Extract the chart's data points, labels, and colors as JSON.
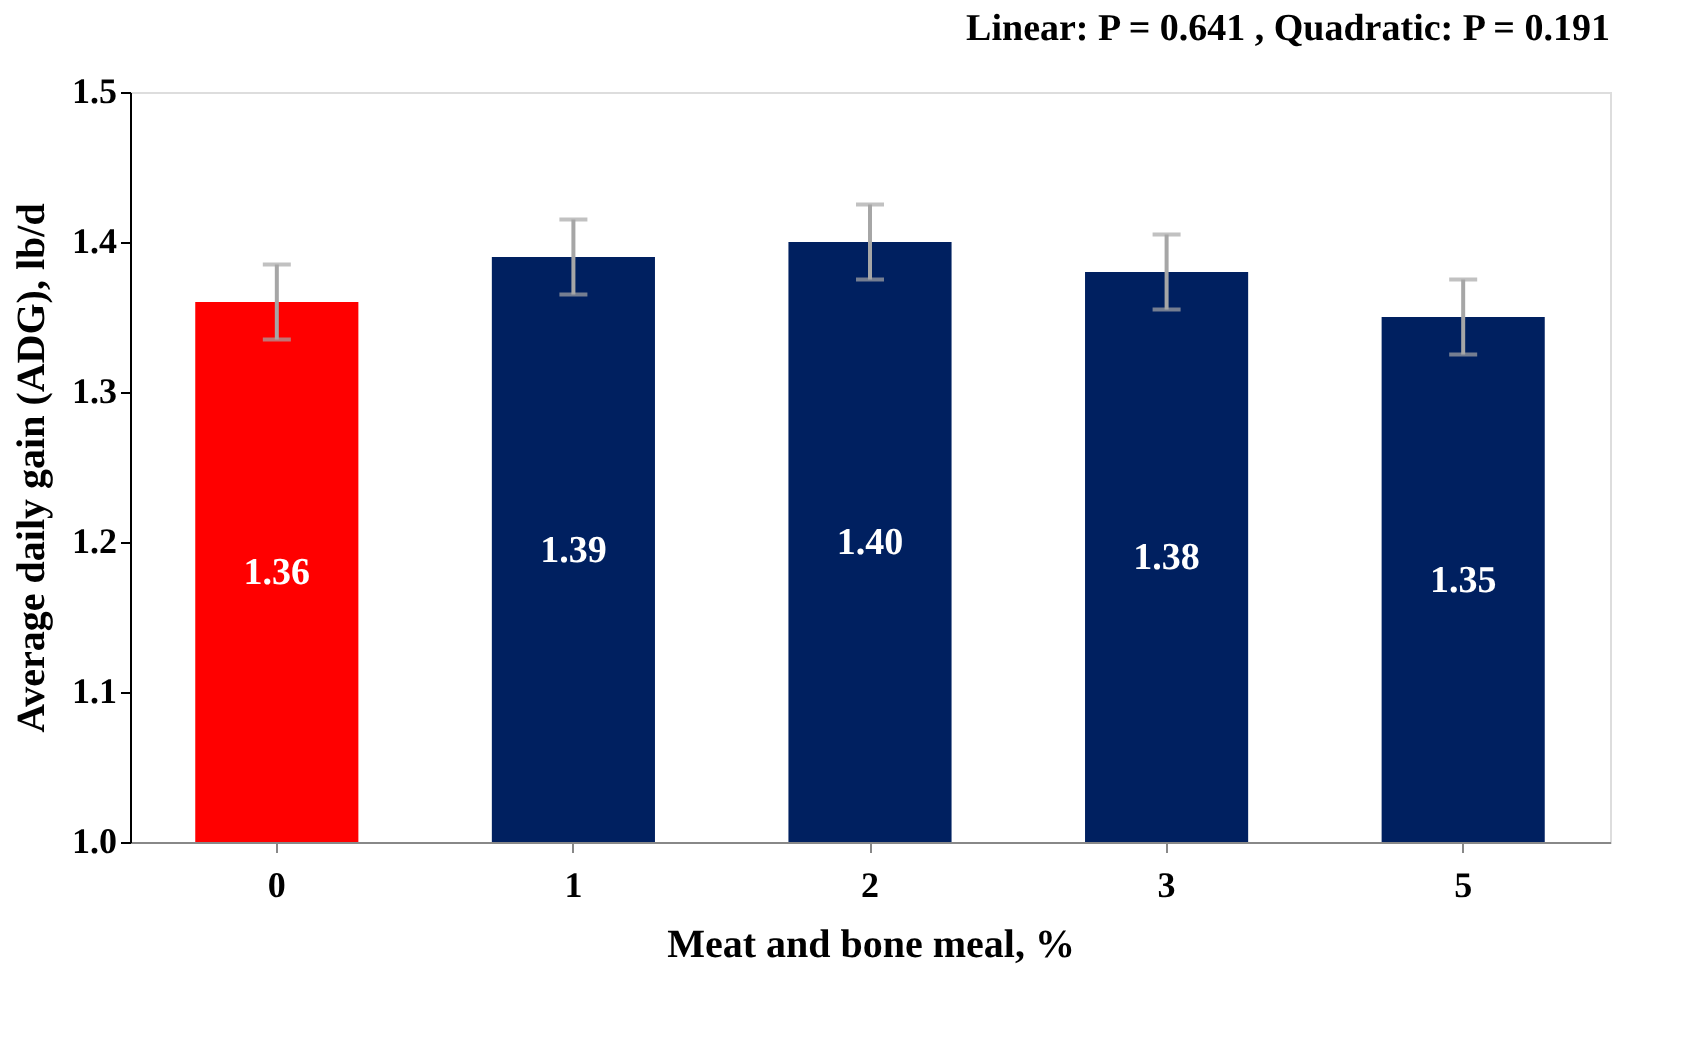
{
  "chart_data": {
    "type": "bar",
    "annotations": [
      "Linear: P = 0.641 , Quadratic: P = 0.191"
    ],
    "xlabel": "Meat and bone meal, %",
    "ylabel": "Average daily gain (ADG), lb/d",
    "categories": [
      "0",
      "1",
      "2",
      "3",
      "5"
    ],
    "values": [
      1.36,
      1.39,
      1.4,
      1.38,
      1.35
    ],
    "colors": [
      "#ff0000",
      "#002060",
      "#002060",
      "#002060",
      "#002060"
    ],
    "errors": [
      0.025,
      0.025,
      0.025,
      0.025,
      0.025
    ],
    "value_labels": [
      "1.36",
      "1.39",
      "1.40",
      "1.38",
      "1.35"
    ],
    "ylim": [
      1.0,
      1.5
    ],
    "yticks": [
      {
        "value": 1.0,
        "label": "1.0"
      },
      {
        "value": 1.1,
        "label": "1.1"
      },
      {
        "value": 1.2,
        "label": "1.2"
      },
      {
        "value": 1.3,
        "label": "1.3"
      },
      {
        "value": 1.4,
        "label": "1.4"
      },
      {
        "value": 1.5,
        "label": "1.5"
      }
    ],
    "grid": false
  }
}
